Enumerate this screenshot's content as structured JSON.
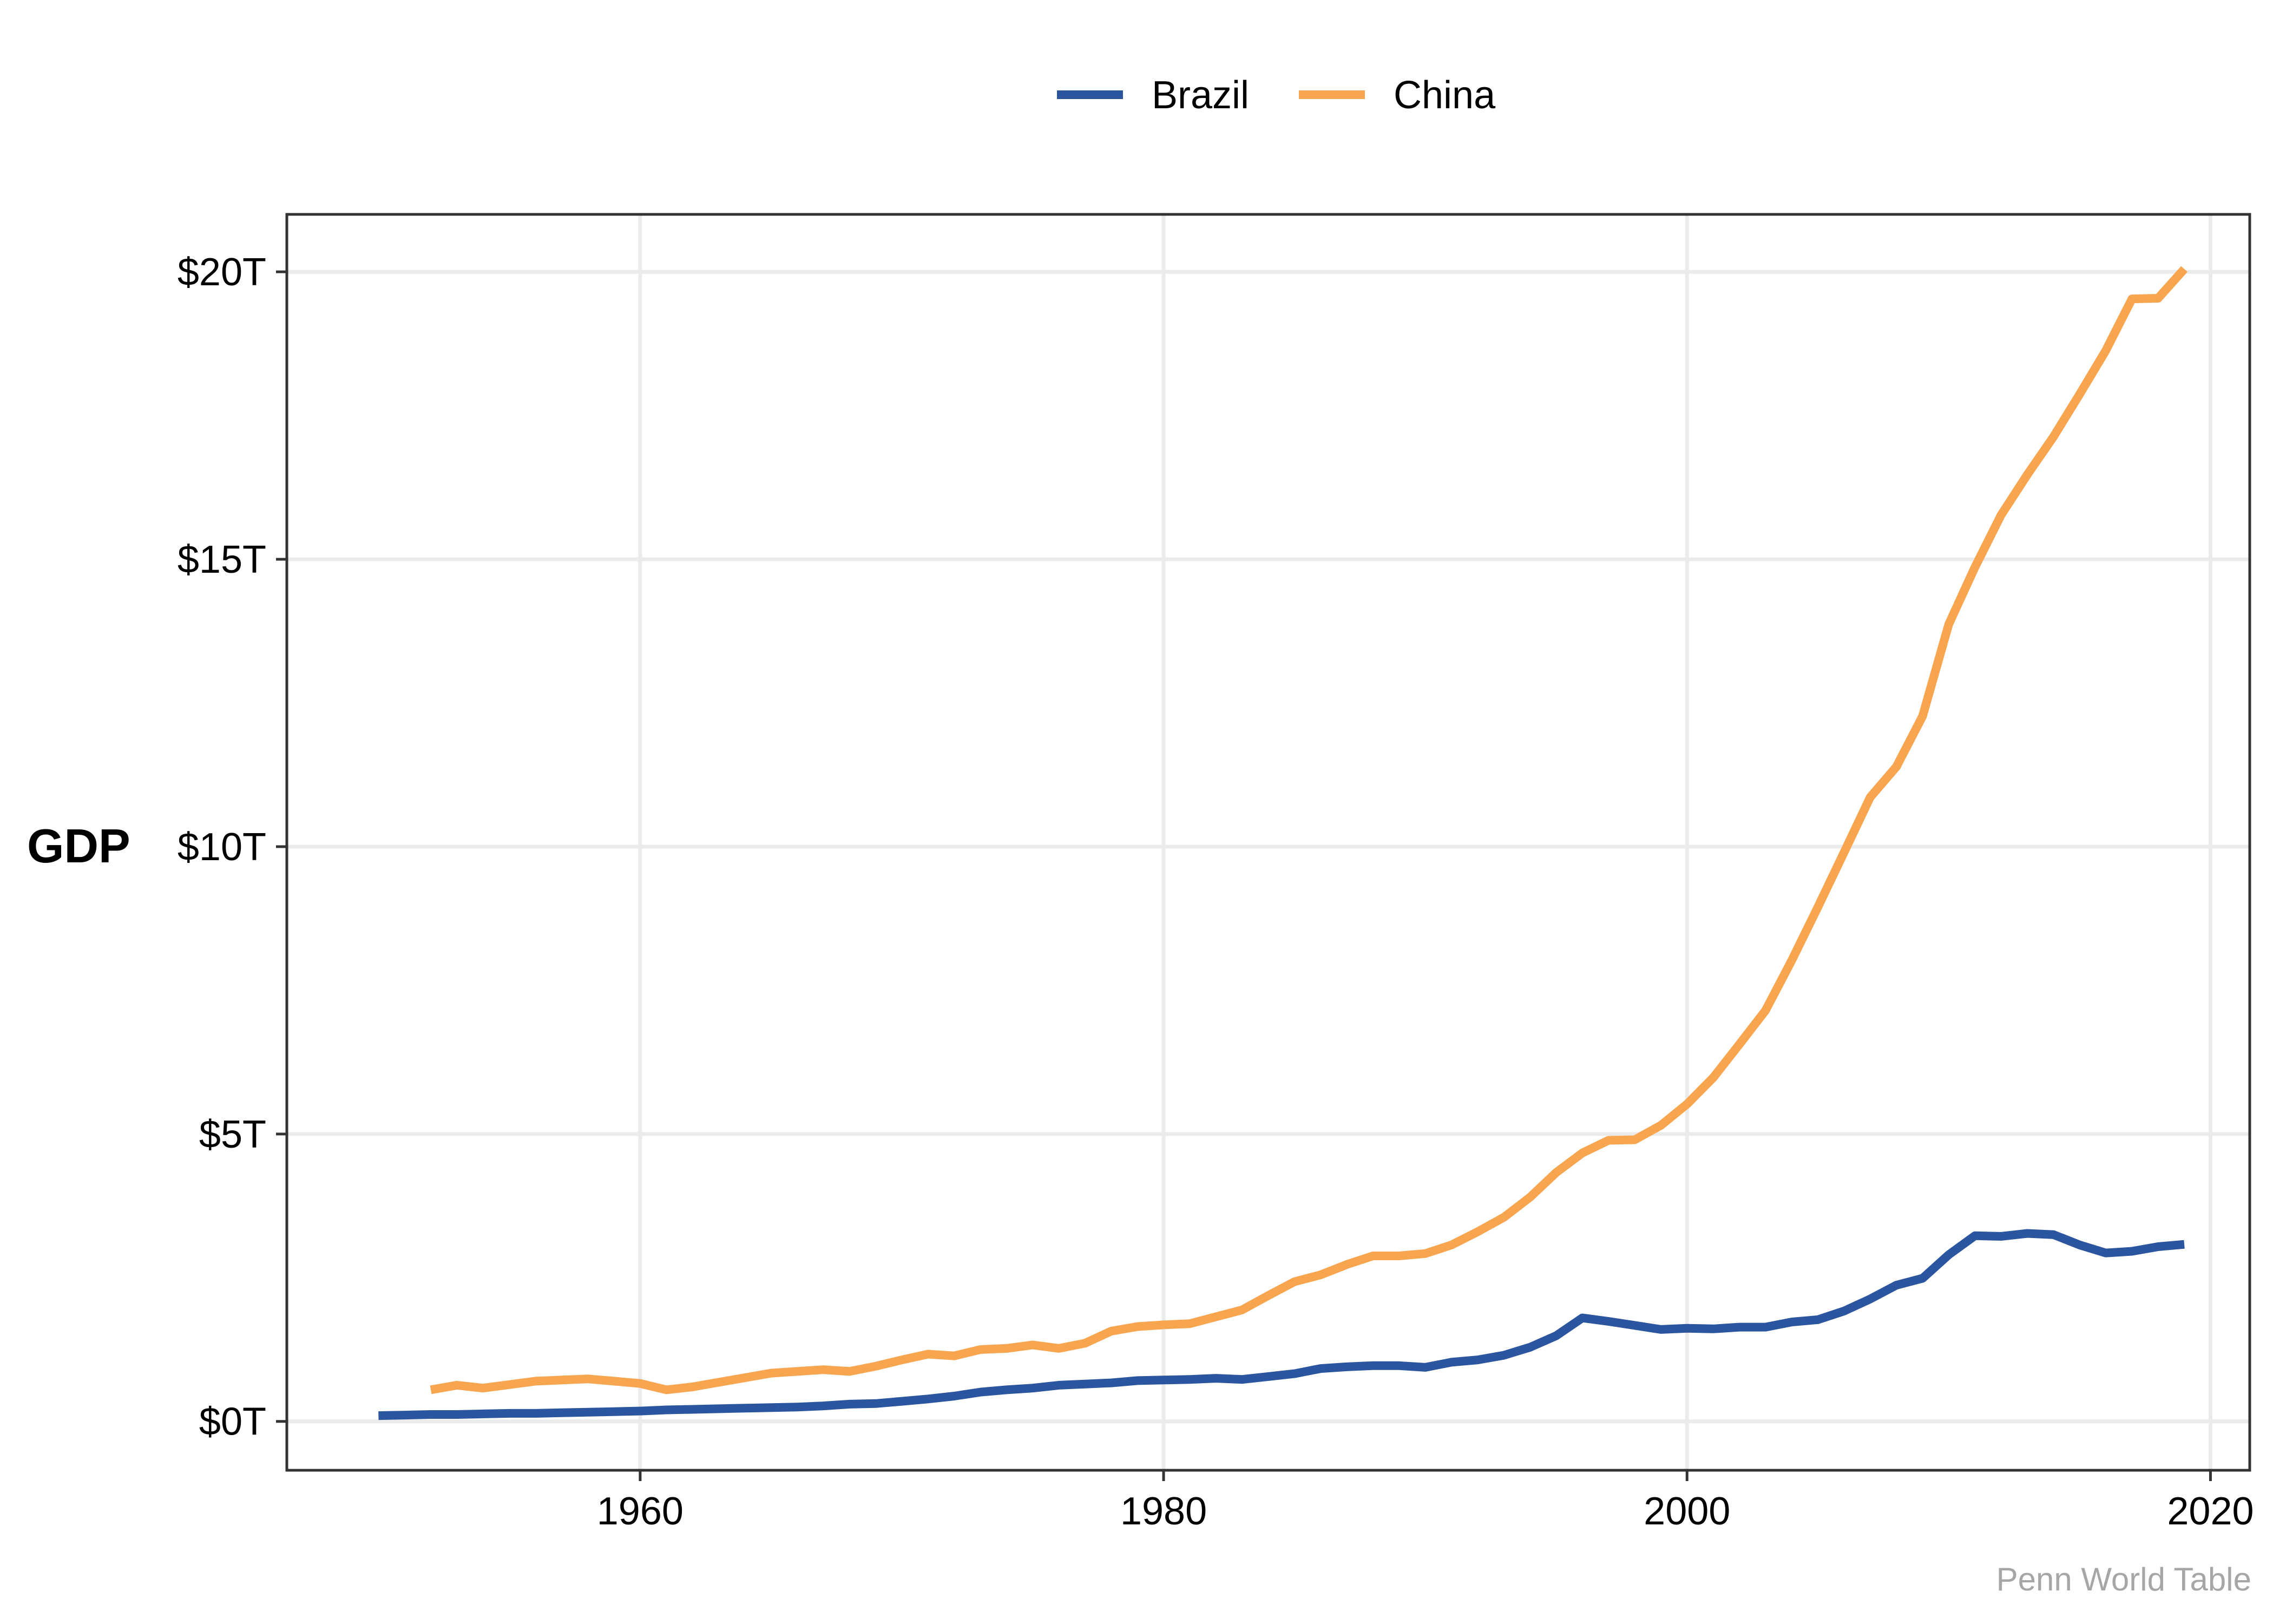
{
  "chart_data": {
    "type": "line",
    "title": "",
    "xlabel": "",
    "ylabel": "GDP",
    "caption": "Penn World Table",
    "xlim": [
      1946.5,
      2021.5
    ],
    "ylim": [
      -0.85,
      21.0
    ],
    "x_ticks": [
      1960,
      1980,
      2000,
      2020
    ],
    "x_tick_labels": [
      "1960",
      "1980",
      "2000",
      "2020"
    ],
    "y_ticks": [
      0,
      5,
      10,
      15,
      20
    ],
    "y_tick_labels": [
      "$0T",
      "$5T",
      "$10T",
      "$15T",
      "$20T"
    ],
    "grid": true,
    "legend_position": "top",
    "series": [
      {
        "name": "Brazil",
        "color": "#2b559f",
        "x": [
          1950,
          1951,
          1952,
          1953,
          1954,
          1955,
          1956,
          1957,
          1958,
          1959,
          1960,
          1961,
          1962,
          1963,
          1964,
          1965,
          1966,
          1967,
          1968,
          1969,
          1970,
          1971,
          1972,
          1973,
          1974,
          1975,
          1976,
          1977,
          1978,
          1979,
          1980,
          1981,
          1982,
          1983,
          1984,
          1985,
          1986,
          1987,
          1988,
          1989,
          1990,
          1991,
          1992,
          1993,
          1994,
          1995,
          1996,
          1997,
          1998,
          1999,
          2000,
          2001,
          2002,
          2003,
          2004,
          2005,
          2006,
          2007,
          2008,
          2009,
          2010,
          2011,
          2012,
          2013,
          2014,
          2015,
          2016,
          2017,
          2018,
          2019
        ],
        "values": [
          0.1,
          0.11,
          0.12,
          0.12,
          0.13,
          0.14,
          0.14,
          0.15,
          0.16,
          0.17,
          0.18,
          0.2,
          0.21,
          0.22,
          0.23,
          0.24,
          0.25,
          0.27,
          0.3,
          0.31,
          0.35,
          0.39,
          0.44,
          0.51,
          0.55,
          0.58,
          0.63,
          0.65,
          0.67,
          0.71,
          0.72,
          0.73,
          0.75,
          0.73,
          0.78,
          0.83,
          0.92,
          0.95,
          0.97,
          0.97,
          0.94,
          1.03,
          1.07,
          1.15,
          1.29,
          1.49,
          1.8,
          1.74,
          1.67,
          1.6,
          1.62,
          1.61,
          1.64,
          1.64,
          1.73,
          1.77,
          1.92,
          2.13,
          2.37,
          2.49,
          2.9,
          3.23,
          3.22,
          3.27,
          3.25,
          3.07,
          2.93,
          2.96,
          3.04,
          3.08
        ]
      },
      {
        "name": "China",
        "color": "#f8a550",
        "x": [
          1952,
          1953,
          1954,
          1955,
          1956,
          1957,
          1958,
          1959,
          1960,
          1961,
          1962,
          1963,
          1964,
          1965,
          1966,
          1967,
          1968,
          1969,
          1970,
          1971,
          1972,
          1973,
          1974,
          1975,
          1976,
          1977,
          1978,
          1979,
          1980,
          1981,
          1982,
          1983,
          1984,
          1985,
          1986,
          1987,
          1988,
          1989,
          1990,
          1991,
          1992,
          1993,
          1994,
          1995,
          1996,
          1997,
          1998,
          1999,
          2000,
          2001,
          2002,
          2003,
          2004,
          2005,
          2006,
          2007,
          2008,
          2009,
          2010,
          2011,
          2012,
          2013,
          2014,
          2015,
          2016,
          2017,
          2018,
          2019
        ],
        "values": [
          0.55,
          0.63,
          0.58,
          0.64,
          0.7,
          0.72,
          0.74,
          0.7,
          0.66,
          0.55,
          0.6,
          0.68,
          0.76,
          0.84,
          0.87,
          0.9,
          0.87,
          0.96,
          1.07,
          1.17,
          1.14,
          1.25,
          1.27,
          1.33,
          1.27,
          1.36,
          1.57,
          1.65,
          1.68,
          1.7,
          1.82,
          1.94,
          2.19,
          2.43,
          2.55,
          2.73,
          2.88,
          2.88,
          2.92,
          3.07,
          3.3,
          3.55,
          3.9,
          4.33,
          4.67,
          4.89,
          4.9,
          5.15,
          5.52,
          5.98,
          6.56,
          7.15,
          8.02,
          8.95,
          9.9,
          10.86,
          11.39,
          12.27,
          13.87,
          14.86,
          15.77,
          16.47,
          17.13,
          17.87,
          18.63,
          19.53,
          19.54,
          20.05
        ]
      }
    ]
  }
}
